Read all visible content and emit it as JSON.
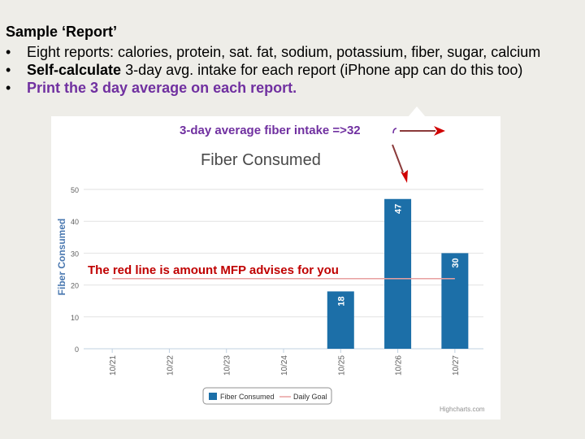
{
  "slide": {
    "heading": "Sample ‘Report’",
    "bullets": [
      {
        "marker": "•",
        "plain_before": "",
        "bold": "",
        "plain": "Eight reports: calories, protein, sat. fat, sodium, potassium, fiber, sugar, calcium"
      },
      {
        "marker": "•",
        "plain_before": "",
        "bold": "Self-calculate",
        "plain": " 3-day avg. intake for each report (iPhone app can do this too)"
      },
      {
        "marker": "•",
        "purple": "Print the 3 day average on each report."
      }
    ],
    "annotation_fiber": "3-day average fiber intake =>32",
    "annotation_redline": "The red line is amount MFP advises for you",
    "accent_purple": "#7030a0",
    "accent_red": "#c00000"
  },
  "chart_data": {
    "type": "bar",
    "title": "Fiber Consumed",
    "ylabel": "Fiber Consumed",
    "xlabel": "",
    "ylim": [
      0,
      50
    ],
    "yticks": [
      0,
      10,
      20,
      30,
      40,
      50
    ],
    "categories": [
      "10/21",
      "10/22",
      "10/23",
      "10/24",
      "10/25",
      "10/26",
      "10/27"
    ],
    "series": [
      {
        "name": "Fiber Consumed",
        "type": "bar",
        "color": "#1c6fa8",
        "values": [
          0,
          0,
          0,
          0,
          18,
          47,
          30
        ]
      },
      {
        "name": "Daily Goal",
        "type": "line",
        "color": "#e8a0a0",
        "values": [
          22,
          22,
          22,
          22,
          22,
          22,
          22
        ]
      }
    ],
    "grid": true,
    "legend": "bottom-center",
    "credit": "Highcharts.com"
  }
}
